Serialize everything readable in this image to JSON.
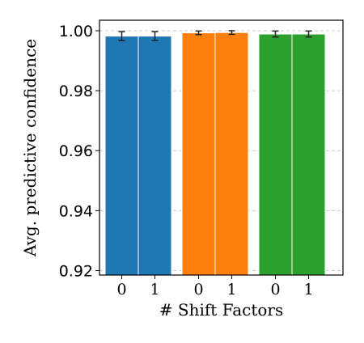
{
  "chart_data": {
    "type": "bar",
    "title": "",
    "xlabel": "# Shift Factors",
    "ylabel": "Avg. predictive confidence",
    "ylim": [
      0.9185,
      1.0035
    ],
    "yticks": [
      0.92,
      0.94,
      0.96,
      0.98,
      1.0
    ],
    "ytick_labels": [
      "0.92",
      "0.94",
      "0.96",
      "0.98",
      "1.00"
    ],
    "grid": "horizontal dashed",
    "legend": "none",
    "groups": [
      {
        "color": "#1f77b4",
        "categories": [
          "0",
          "1"
        ],
        "values": [
          0.9982,
          0.9982
        ],
        "errors": [
          0.0015,
          0.0015
        ]
      },
      {
        "color": "#ff7f0e",
        "categories": [
          "0",
          "1"
        ],
        "values": [
          0.9993,
          0.9994
        ],
        "errors": [
          0.0006,
          0.0006
        ]
      },
      {
        "color": "#2ca02c",
        "categories": [
          "0",
          "1"
        ],
        "values": [
          0.9989,
          0.9989
        ],
        "errors": [
          0.001,
          0.001
        ]
      }
    ]
  }
}
